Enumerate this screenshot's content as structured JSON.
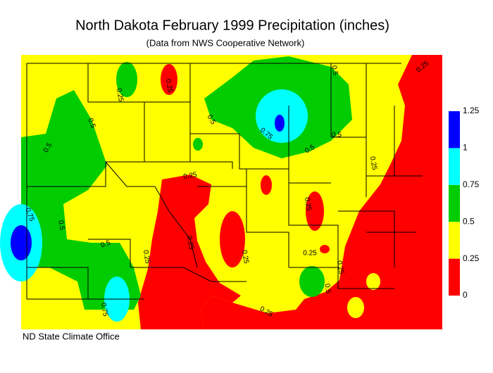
{
  "header": {
    "title": "North Dakota February 1999 Precipitation (inches)",
    "subtitle": "(Data from NWS Cooperative Network)"
  },
  "legend": {
    "ticks": [
      0,
      0.25,
      0.5,
      0.75,
      1,
      1.25
    ],
    "colors": [
      "#ff0000",
      "#ffff00",
      "#00cc00",
      "#00ffff",
      "#0000ff"
    ]
  },
  "contour_labels": [
    0.5,
    0.25,
    0.5,
    0.5,
    0.5,
    0.75,
    0.5,
    0.5,
    0.25,
    0.25,
    0.25,
    0.25,
    0.25,
    0.5,
    0.75,
    0.5,
    0.25,
    0.25,
    0.25,
    0.25,
    0.5,
    0.75,
    0.25,
    0.25
  ],
  "credit": "ND State Climate Office"
}
